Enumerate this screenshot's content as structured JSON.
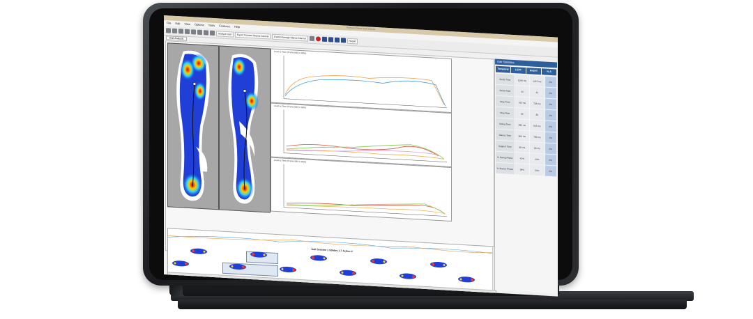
{
  "app": {
    "window_title": "FootScan Plantar Gait Analysis",
    "menu": [
      "File",
      "Edit",
      "View",
      "Options",
      "Tools",
      "Features",
      "Help"
    ],
    "toolbar_buttons": [
      "Analyze Gait",
      "Export Forward Stance Interval",
      "Export Average Stance Interval",
      "Report"
    ],
    "tab_label": "Gait Analysis"
  },
  "charts": [
    {
      "title": "Load vs Time (Frame 800 to 1500)"
    },
    {
      "title": "Load vs Time (Frame 800 to 1500)"
    },
    {
      "title": "Load vs Time (Frame 800 to 1500)"
    }
  ],
  "stats": {
    "title": "Gait Statistics",
    "tabs": [
      "Temporal",
      "LEFT",
      "RIGHT",
      "% Δ"
    ],
    "rows": [
      {
        "label": "Stride Time",
        "left": "1386 ms",
        "right": "1415 ms",
        "diff": "2%"
      },
      {
        "label": "Stride Rate",
        "left": "43",
        "right": "42",
        "diff": "2%"
      },
      {
        "label": "Step Time",
        "left": "705 ms",
        "right": "728 ms",
        "diff": "3%"
      },
      {
        "label": "Step Rate",
        "left": "85",
        "right": "82",
        "diff": "3%"
      },
      {
        "label": "Swing Time",
        "left": "580 ms",
        "right": "616 ms",
        "diff": "6%"
      },
      {
        "label": "Stance Time",
        "left": "806 ms",
        "right": "799 ms",
        "diff": "1%"
      },
      {
        "label": "Support Time",
        "left": "88 ms",
        "right": "86 ms",
        "diff": "2%"
      },
      {
        "label": "% Swing Phase",
        "left": "41%",
        "right": "44%",
        "diff": "6%"
      },
      {
        "label": "% Stance Phase",
        "left": "58%",
        "right": "56%",
        "diff": "4%"
      }
    ]
  },
  "session": {
    "label": "Gait Session 1 Strides 1-7 Action 4"
  },
  "colors": {
    "accent": "#2d5f9c",
    "bezel": "#1b1c1f"
  }
}
